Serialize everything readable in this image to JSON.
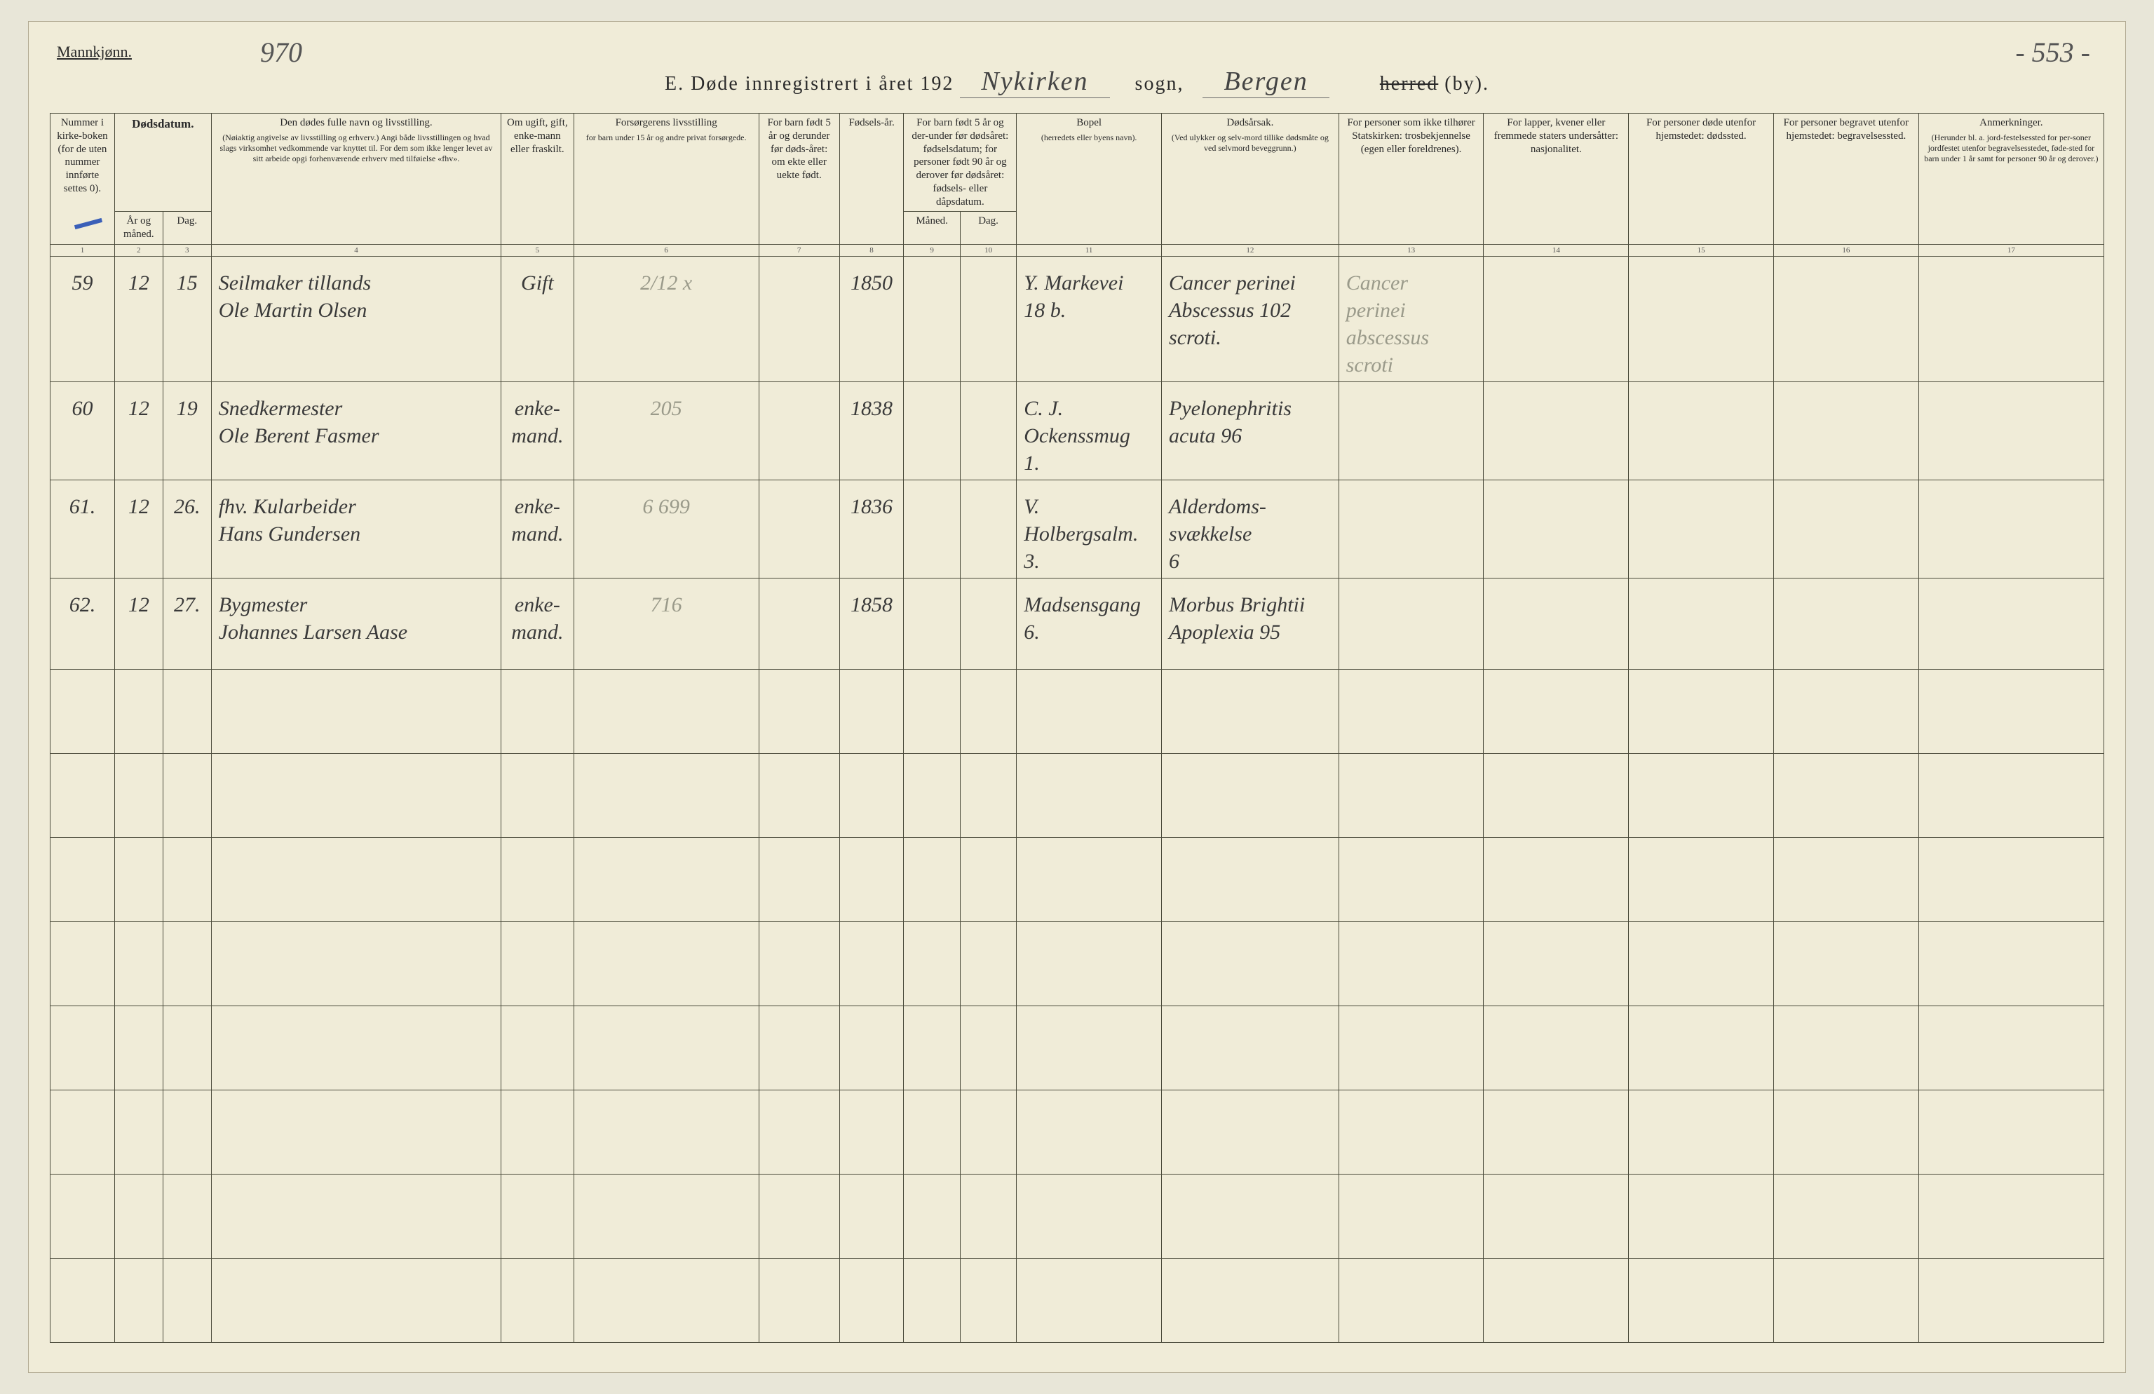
{
  "colors": {
    "page_bg": "#f0ecd8",
    "outer_bg": "#e8e6d8",
    "rule": "#4a4a3a",
    "ink": "#3a3a3a",
    "faint_ink": "#9a9a8a",
    "blue_mark": "#3a5fb8"
  },
  "typography": {
    "printed_font": "Georgia / Times",
    "handwritten_font": "cursive",
    "header_fontsize_pt": 11,
    "handwriting_fontsize_pt": 22
  },
  "header": {
    "gender": "Mannkjønn.",
    "page_left": "970",
    "page_right": "- 553 -",
    "title_prefix": "E.   Døde innregistrert i året 192",
    "parish_written": "Nykirken",
    "sogn_label": "sogn,",
    "district_written": "Bergen",
    "herred_label": "herred",
    "by_label": "(by)."
  },
  "columns": [
    {
      "n": "1",
      "label": "Nummer i kirke-boken (for de uten nummer innførte settes 0)."
    },
    {
      "n": "2",
      "label": "År og måned."
    },
    {
      "n": "3",
      "label": "Dag."
    },
    {
      "n": "2-3-group",
      "label": "Dødsdatum."
    },
    {
      "n": "4",
      "label": "Den dødes fulle navn og livsstilling.",
      "sub": "(Nøiaktig angivelse av livsstilling og erhverv.) Angi både livsstillingen og hvad slags virksomhet vedkommende var knyttet til. For dem som ikke lenger levet av sitt arbeide opgi forhenværende erhverv med tilføielse «fhv»."
    },
    {
      "n": "5",
      "label": "Om ugift, gift, enke-mann eller fraskilt."
    },
    {
      "n": "6",
      "label": "Forsørgerens livsstilling",
      "sub": "for barn under 15 år og andre privat forsørgede."
    },
    {
      "n": "7",
      "label": "For barn født 5 år og derunder før døds-året: om ekte eller uekte født."
    },
    {
      "n": "8",
      "label": "Fødsels-år."
    },
    {
      "n": "9",
      "label": "Måned."
    },
    {
      "n": "10",
      "label": "Dag."
    },
    {
      "n": "9-10-group",
      "label": "For barn født 5 år og der-under før dødsåret: fødselsdatum; for personer født 90 år og derover før dødsåret: fødsels- eller dåpsdatum."
    },
    {
      "n": "11",
      "label": "Bopel",
      "sub": "(herredets eller byens navn)."
    },
    {
      "n": "12",
      "label": "Dødsårsak.",
      "sub": "(Ved ulykker og selv-mord tillike dødsmåte og ved selvmord beveggrunn.)"
    },
    {
      "n": "13",
      "label": "For personer som ikke tilhører Statskirken: trosbekjennelse (egen eller foreldrenes)."
    },
    {
      "n": "14",
      "label": "For lapper, kvener eller fremmede staters undersåtter: nasjonalitet."
    },
    {
      "n": "15",
      "label": "For personer døde utenfor hjemstedet: dødssted."
    },
    {
      "n": "16",
      "label": "For personer begravet utenfor hjemstedet: begravelsessted."
    },
    {
      "n": "17",
      "label": "Anmerkninger.",
      "sub": "(Herunder bl. a. jord-festelsessted for per-soner jordfestet utenfor begravelsesstedet, føde-sted for barn under 1 år samt for personer 90 år og derover.)"
    }
  ],
  "col_nums": [
    "1",
    "2",
    "3",
    "4",
    "5",
    "6",
    "7",
    "8",
    "9",
    "10",
    "11",
    "12",
    "13",
    "14",
    "15",
    "16",
    "17"
  ],
  "rows": [
    {
      "num": "59",
      "month": "12",
      "day": "15",
      "name": "Seilmaker tillands\nOle Martin Olsen",
      "status": "Gift",
      "supporter": "2/12 x",
      "legit": "",
      "birth_year": "1850",
      "bm": "",
      "bd": "",
      "residence": "Y. Markevei\n18 b.",
      "cause": "Cancer perinei\nAbscessus 102\nscroti.",
      "creed": "Cancer\nperinei\nabscessus\nscroti",
      "nat": "",
      "dplace": "",
      "bplace": "",
      "notes": ""
    },
    {
      "num": "60",
      "month": "12",
      "day": "19",
      "name": "Snedkermester\nOle Berent Fasmer",
      "status": "enke-\nmand.",
      "supporter": "205",
      "legit": "",
      "birth_year": "1838",
      "bm": "",
      "bd": "",
      "residence": "C. J. Ockenssmug\n1.",
      "cause": "Pyelonephritis\nacuta 96",
      "creed": "",
      "nat": "",
      "dplace": "",
      "bplace": "",
      "notes": ""
    },
    {
      "num": "61.",
      "month": "12",
      "day": "26.",
      "name": "fhv. Kularbeider\nHans Gundersen",
      "status": "enke-\nmand.",
      "supporter": "6  699",
      "legit": "",
      "birth_year": "1836",
      "bm": "",
      "bd": "",
      "residence": "V. Holbergsalm.\n3.",
      "cause": "Alderdoms-\nsvækkelse\n6",
      "creed": "",
      "nat": "",
      "dplace": "",
      "bplace": "",
      "notes": ""
    },
    {
      "num": "62.",
      "month": "12",
      "day": "27.",
      "name": "Bygmester\nJohannes Larsen Aase",
      "status": "enke-\nmand.",
      "supporter": "716",
      "legit": "",
      "birth_year": "1858",
      "bm": "",
      "bd": "",
      "residence": "Madsensgang\n6.",
      "cause": "Morbus Brightii\nApoplexia 95",
      "creed": "",
      "nat": "",
      "dplace": "",
      "bplace": "",
      "notes": ""
    }
  ],
  "empty_row_count": 8
}
